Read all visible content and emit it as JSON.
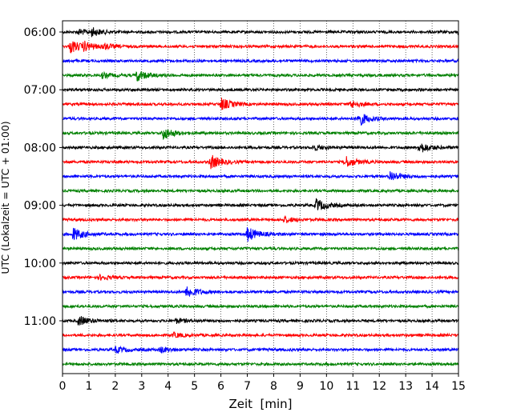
{
  "chart_data": {
    "type": "line",
    "title": "",
    "xlabel": "Zeit  [min]",
    "ylabel": "UTC (Lokalzeit = UTC + 01:00)",
    "xlim": [
      0,
      15
    ],
    "x_ticks": [
      "0",
      "1",
      "2",
      "3",
      "4",
      "5",
      "6",
      "7",
      "8",
      "9",
      "10",
      "11",
      "12",
      "13",
      "14",
      "15"
    ],
    "y_ticks": [
      "06:00",
      "07:00",
      "08:00",
      "09:00",
      "10:00",
      "11:00"
    ],
    "grid": "vertical dotted",
    "trace_interval_minutes": 15,
    "series": [
      {
        "start": "06:00",
        "color": "#000000",
        "events": [
          [
            0.6,
            0.4
          ],
          [
            1.1,
            0.5
          ],
          [
            15.0,
            0.6
          ]
        ]
      },
      {
        "start": "06:15",
        "color": "#ff0000",
        "events": [
          [
            0.3,
            0.9
          ],
          [
            0.8,
            0.5
          ],
          [
            1.5,
            0.4
          ]
        ]
      },
      {
        "start": "06:30",
        "color": "#0000ff",
        "events": []
      },
      {
        "start": "06:45",
        "color": "#008000",
        "events": [
          [
            1.5,
            0.35
          ],
          [
            2.8,
            0.8
          ]
        ]
      },
      {
        "start": "07:00",
        "color": "#000000",
        "events": []
      },
      {
        "start": "07:15",
        "color": "#ff0000",
        "events": [
          [
            6.0,
            0.85
          ],
          [
            10.9,
            0.5
          ]
        ]
      },
      {
        "start": "07:30",
        "color": "#0000ff",
        "events": [
          [
            11.2,
            1.0
          ]
        ]
      },
      {
        "start": "07:45",
        "color": "#008000",
        "events": [
          [
            3.8,
            0.9
          ]
        ]
      },
      {
        "start": "08:00",
        "color": "#000000",
        "events": [
          [
            9.5,
            0.35
          ],
          [
            13.5,
            0.8
          ]
        ]
      },
      {
        "start": "08:15",
        "color": "#ff0000",
        "events": [
          [
            5.6,
            1.0
          ],
          [
            10.7,
            0.8
          ]
        ]
      },
      {
        "start": "08:30",
        "color": "#0000ff",
        "events": [
          [
            12.4,
            0.75
          ]
        ]
      },
      {
        "start": "08:45",
        "color": "#008000",
        "events": []
      },
      {
        "start": "09:00",
        "color": "#000000",
        "events": [
          [
            9.6,
            0.9
          ]
        ]
      },
      {
        "start": "09:15",
        "color": "#ff0000",
        "events": [
          [
            8.4,
            0.4
          ]
        ]
      },
      {
        "start": "09:30",
        "color": "#0000ff",
        "events": [
          [
            0.4,
            0.9
          ],
          [
            7.0,
            1.0
          ]
        ]
      },
      {
        "start": "09:45",
        "color": "#008000",
        "events": []
      },
      {
        "start": "10:00",
        "color": "#000000",
        "events": []
      },
      {
        "start": "10:15",
        "color": "#ff0000",
        "events": [
          [
            1.4,
            0.3
          ]
        ]
      },
      {
        "start": "10:30",
        "color": "#0000ff",
        "events": [
          [
            4.7,
            0.85
          ]
        ]
      },
      {
        "start": "10:45",
        "color": "#008000",
        "events": []
      },
      {
        "start": "11:00",
        "color": "#000000",
        "events": [
          [
            0.6,
            0.7
          ],
          [
            4.3,
            0.3
          ]
        ]
      },
      {
        "start": "11:15",
        "color": "#ff0000",
        "events": [
          [
            4.2,
            0.3
          ]
        ]
      },
      {
        "start": "11:30",
        "color": "#0000ff",
        "events": [
          [
            2.0,
            0.4
          ],
          [
            3.7,
            0.4
          ]
        ]
      },
      {
        "start": "11:45",
        "color": "#008000",
        "events": []
      }
    ]
  }
}
